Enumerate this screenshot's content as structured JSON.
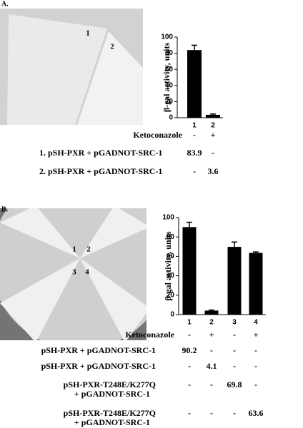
{
  "panels": [
    {
      "label": "A.",
      "photo_labels": [
        "1",
        "2"
      ],
      "table": {
        "header_label": "Ketoconazole",
        "header": [
          "-",
          "+"
        ],
        "rows": [
          {
            "label": [
              "1. pSH-PXR + pGADNOT-SRC-1"
            ],
            "cells": [
              "83.9",
              "-"
            ]
          },
          {
            "label": [
              "2. pSH-PXR + pGADNOT-SRC-1"
            ],
            "cells": [
              "-",
              "3.6"
            ]
          }
        ]
      }
    },
    {
      "label": "B.",
      "photo_labels": [
        "1",
        "2",
        "3",
        "4"
      ],
      "table": {
        "header_label": "Ketoconazole",
        "header": [
          "-",
          "+",
          "-",
          "+"
        ],
        "rows": [
          {
            "label": [
              "pSH-PXR + pGADNOT-SRC-1"
            ],
            "cells": [
              "90.2",
              "-",
              "-",
              "-"
            ]
          },
          {
            "label": [
              "pSH-PXR + pGADNOT-SRC-1"
            ],
            "cells": [
              "-",
              "4.1",
              "-",
              "-"
            ]
          },
          {
            "label": [
              "pSH-PXR-T248E/K277Q",
              "+ pGADNOT-SRC-1"
            ],
            "cells": [
              "-",
              "-",
              "69.8",
              "-"
            ]
          },
          {
            "label": [
              "pSH-PXR-T248E/K277Q",
              "+ pGADNOT-SRC-1"
            ],
            "cells": [
              "-",
              "-",
              "-",
              "63.6"
            ]
          }
        ]
      }
    }
  ],
  "chart_data": [
    {
      "type": "bar",
      "y_label": "β-gal activity, units",
      "categories": [
        "1",
        "2"
      ],
      "values": [
        83.9,
        3.6
      ],
      "errors": [
        6,
        1
      ],
      "color": "#000000",
      "ylim": [
        0,
        100
      ],
      "yticks": [
        0,
        20,
        40,
        60,
        80,
        100
      ]
    },
    {
      "type": "bar",
      "y_label": "β-gal activity, units",
      "categories": [
        "1",
        "2",
        "3",
        "4"
      ],
      "values": [
        90.2,
        4.1,
        69.8,
        63.6
      ],
      "errors": [
        5,
        0.6,
        5,
        1
      ],
      "color": "#000000",
      "ylim": [
        0,
        100
      ],
      "yticks": [
        0,
        20,
        40,
        60,
        80,
        100
      ]
    }
  ]
}
